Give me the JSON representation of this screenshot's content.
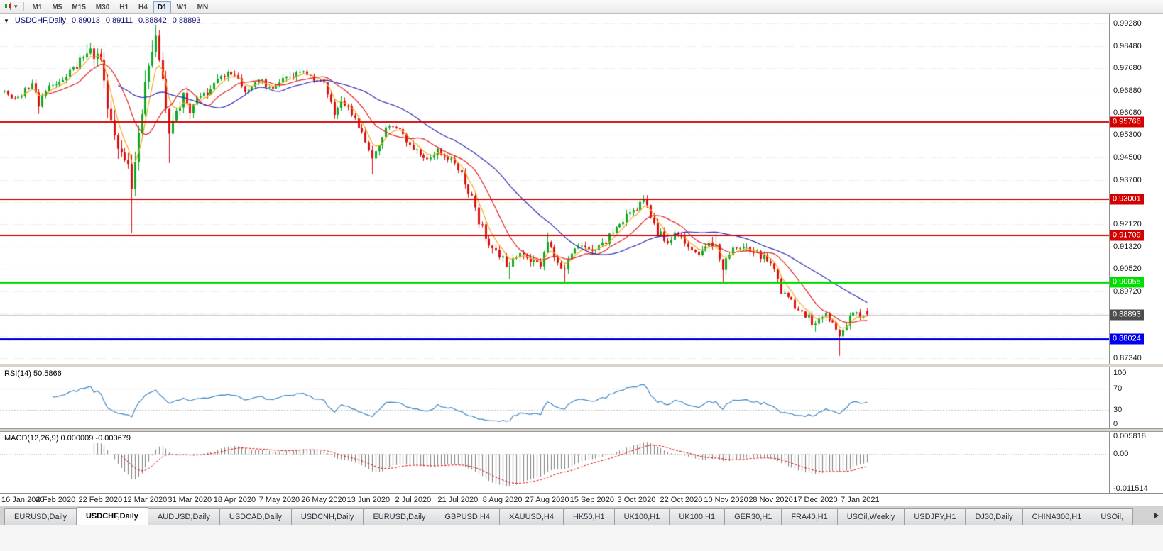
{
  "toolbar": {
    "timeframes": [
      "M1",
      "M5",
      "M15",
      "M30",
      "H1",
      "H4",
      "D1",
      "W1",
      "MN"
    ],
    "active_timeframe": "D1"
  },
  "chart": {
    "title": {
      "dropdown_glyph": "▼",
      "symbol": "USDCHF,Daily",
      "open": "0.89013",
      "high": "0.89111",
      "low": "0.88842",
      "close": "0.88893"
    },
    "price_axis": {
      "visible_ticks": [
        "0.99280",
        "0.98480",
        "0.97680",
        "0.96880",
        "0.96080",
        "0.95300",
        "0.94500",
        "0.93700",
        "0.92120",
        "0.91320",
        "0.90520",
        "0.89720",
        "0.87340"
      ],
      "grid_prices": [
        0.9928,
        0.9848,
        0.9768,
        0.9688,
        0.9608,
        0.953,
        0.945,
        0.937,
        0.929,
        0.9212,
        0.9132,
        0.9052,
        0.8972,
        0.8892,
        0.8812,
        0.8734
      ],
      "top_price": 0.99609,
      "price_per_pixel": 0.000253
    },
    "levels": [
      {
        "label": "0.95766",
        "price": 0.95766,
        "color": "#d40000",
        "width": 2
      },
      {
        "label": "0.93001",
        "price": 0.93001,
        "color": "#d40000",
        "width": 2
      },
      {
        "label": "0.91709",
        "price": 0.91709,
        "color": "#d40000",
        "width": 2
      },
      {
        "label": "0.90055",
        "price": 0.90055,
        "color": "#00dd00",
        "width": 3
      },
      {
        "label": "0.88024",
        "price": 0.88024,
        "color": "#0000ee",
        "width": 3
      }
    ],
    "current_price": {
      "label": "0.88893",
      "price": 0.88893,
      "badge_color": "#4d4d4d",
      "line_color": "#c4c4c4"
    },
    "time_axis_labels": [
      "16 Jan 2020",
      "4 Feb 2020",
      "22 Feb 2020",
      "12 Mar 2020",
      "31 Mar 2020",
      "18 Apr 2020",
      "7 May 2020",
      "26 May 2020",
      "13 Jun 2020",
      "2 Jul 2020",
      "21 Jul 2020",
      "8 Aug 2020",
      "27 Aug 2020",
      "15 Sep 2020",
      "3 Oct 2020",
      "22 Oct 2020",
      "10 Nov 2020",
      "28 Nov 2020",
      "17 Dec 2020",
      "7 Jan 2021"
    ]
  },
  "rsi_panel": {
    "label": "RSI(14) 50.5866",
    "scale_ticks": [
      "100",
      "70",
      "30",
      "0"
    ],
    "levels": [
      70,
      30
    ],
    "line_color": "#3d85c6"
  },
  "macd_panel": {
    "label": "MACD(12,26,9) 0.000009 -0.000679",
    "scale_ticks": [
      "0.005818",
      "0.00",
      "-0.011514"
    ],
    "scale_max": 0.005818,
    "scale_min": -0.011514,
    "histogram_color": "#7f7f7f",
    "signal_color": "#e00000"
  },
  "tabs": {
    "items": [
      "EURUSD,Daily",
      "USDCHF,Daily",
      "AUDUSD,Daily",
      "USDCAD,Daily",
      "USDCNH,Daily",
      "EURUSD,Daily",
      "GBPUSD,H4",
      "XAUUSD,H4",
      "HK50,H1",
      "UK100,H1",
      "UK100,H1",
      "GER30,H1",
      "FRA40,H1",
      "USOil,Weekly",
      "USDJPY,H1",
      "DJ30,Daily",
      "CHINA300,H1",
      "USOil,"
    ],
    "active_index": 1
  },
  "chart_data": {
    "type": "candlestick",
    "symbol": "USDCHF",
    "timeframe": "Daily",
    "candle_count": 252,
    "up_color": "#0cab22",
    "down_color": "#e01010",
    "ohlc_last": {
      "open": 0.89013,
      "high": 0.89111,
      "low": 0.88842,
      "close": 0.88893
    },
    "time_ticks": {
      "first_candle_index": 2,
      "step": 13
    },
    "close_anchors": [
      [
        0,
        0.9685
      ],
      [
        4,
        0.9655
      ],
      [
        8,
        0.972
      ],
      [
        10,
        0.964
      ],
      [
        12,
        0.969
      ],
      [
        15,
        0.9715
      ],
      [
        18,
        0.9745
      ],
      [
        21,
        0.9775
      ],
      [
        24,
        0.984
      ],
      [
        26,
        0.982
      ],
      [
        28,
        0.98
      ],
      [
        30,
        0.964
      ],
      [
        33,
        0.948
      ],
      [
        36,
        0.939
      ],
      [
        37,
        0.936
      ],
      [
        39,
        0.952
      ],
      [
        41,
        0.97
      ],
      [
        43,
        0.984
      ],
      [
        44,
        0.987
      ],
      [
        45,
        0.98
      ],
      [
        47,
        0.962
      ],
      [
        48,
        0.953
      ],
      [
        50,
        0.961
      ],
      [
        52,
        0.9665
      ],
      [
        54,
        0.9615
      ],
      [
        58,
        0.968
      ],
      [
        62,
        0.9715
      ],
      [
        66,
        0.9755
      ],
      [
        70,
        0.969
      ],
      [
        74,
        0.972
      ],
      [
        78,
        0.9705
      ],
      [
        82,
        0.973
      ],
      [
        86,
        0.976
      ],
      [
        90,
        0.9735
      ],
      [
        93,
        0.9705
      ],
      [
        96,
        0.9615
      ],
      [
        99,
        0.9645
      ],
      [
        102,
        0.9585
      ],
      [
        105,
        0.95
      ],
      [
        107,
        0.9445
      ],
      [
        109,
        0.948
      ],
      [
        111,
        0.955
      ],
      [
        114,
        0.956
      ],
      [
        117,
        0.9505
      ],
      [
        120,
        0.9475
      ],
      [
        123,
        0.945
      ],
      [
        126,
        0.9475
      ],
      [
        129,
        0.9445
      ],
      [
        132,
        0.9415
      ],
      [
        135,
        0.933
      ],
      [
        138,
        0.923
      ],
      [
        141,
        0.915
      ],
      [
        144,
        0.9095
      ],
      [
        147,
        0.906
      ],
      [
        150,
        0.9125
      ],
      [
        153,
        0.9075
      ],
      [
        156,
        0.906
      ],
      [
        158,
        0.914
      ],
      [
        160,
        0.91
      ],
      [
        163,
        0.905
      ],
      [
        165,
        0.911
      ],
      [
        168,
        0.9145
      ],
      [
        171,
        0.9105
      ],
      [
        174,
        0.914
      ],
      [
        177,
        0.9175
      ],
      [
        180,
        0.922
      ],
      [
        183,
        0.926
      ],
      [
        186,
        0.929
      ],
      [
        188,
        0.925
      ],
      [
        190,
        0.918
      ],
      [
        193,
        0.9155
      ],
      [
        196,
        0.9175
      ],
      [
        199,
        0.914
      ],
      [
        202,
        0.9115
      ],
      [
        205,
        0.914
      ],
      [
        207,
        0.915
      ],
      [
        209,
        0.906
      ],
      [
        211,
        0.911
      ],
      [
        214,
        0.9125
      ],
      [
        218,
        0.9115
      ],
      [
        222,
        0.9085
      ],
      [
        224,
        0.906
      ],
      [
        226,
        0.8975
      ],
      [
        229,
        0.893
      ],
      [
        232,
        0.89
      ],
      [
        234,
        0.888
      ],
      [
        236,
        0.885
      ],
      [
        239,
        0.8895
      ],
      [
        241,
        0.886
      ],
      [
        243,
        0.88
      ],
      [
        245,
        0.886
      ],
      [
        247,
        0.8905
      ],
      [
        249,
        0.888
      ],
      [
        251,
        0.88893
      ]
    ],
    "volatility_anchors": [
      [
        0,
        0.003
      ],
      [
        22,
        0.0035
      ],
      [
        28,
        0.0075
      ],
      [
        34,
        0.0095
      ],
      [
        40,
        0.01
      ],
      [
        46,
        0.0095
      ],
      [
        52,
        0.0055
      ],
      [
        60,
        0.004
      ],
      [
        90,
        0.003
      ],
      [
        100,
        0.0042
      ],
      [
        112,
        0.0036
      ],
      [
        130,
        0.0032
      ],
      [
        137,
        0.0048
      ],
      [
        148,
        0.0042
      ],
      [
        160,
        0.0036
      ],
      [
        180,
        0.0038
      ],
      [
        190,
        0.004
      ],
      [
        200,
        0.0032
      ],
      [
        208,
        0.0052
      ],
      [
        214,
        0.0028
      ],
      [
        226,
        0.0036
      ],
      [
        238,
        0.0034
      ],
      [
        246,
        0.003
      ],
      [
        251,
        0.0026
      ]
    ],
    "wick_overrides": [
      {
        "i": 10,
        "low": 0.9605
      },
      {
        "i": 24,
        "high": 0.9855
      },
      {
        "i": 37,
        "low": 0.918
      },
      {
        "i": 44,
        "high": 0.9923
      },
      {
        "i": 48,
        "low": 0.943
      },
      {
        "i": 107,
        "low": 0.939
      },
      {
        "i": 147,
        "low": 0.9015
      },
      {
        "i": 158,
        "high": 0.9182
      },
      {
        "i": 163,
        "low": 0.9006
      },
      {
        "i": 186,
        "high": 0.9302
      },
      {
        "i": 207,
        "high": 0.9186
      },
      {
        "i": 209,
        "low": 0.9002
      },
      {
        "i": 236,
        "low": 0.8828
      },
      {
        "i": 243,
        "low": 0.8742
      }
    ],
    "moving_averages": [
      {
        "type": "ema",
        "period": 5,
        "color": "#f2a71b"
      },
      {
        "type": "sma",
        "period": 13,
        "color": "#e02020"
      },
      {
        "type": "sma",
        "period": 34,
        "color": "#2b2bb4"
      }
    ],
    "indicators": {
      "rsi_period": 14,
      "macd": [
        12,
        26,
        9
      ]
    }
  }
}
